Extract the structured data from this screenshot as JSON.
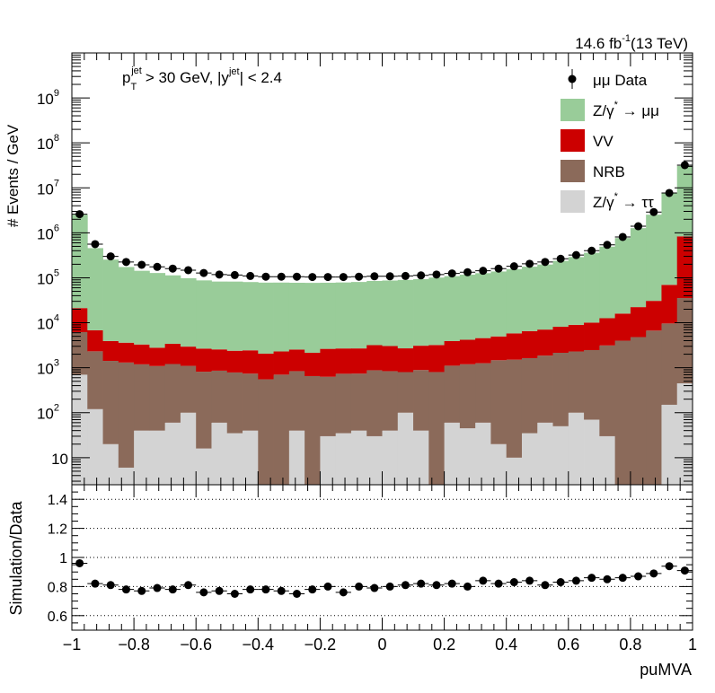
{
  "header": {
    "lumi_text": "14.6 fb",
    "lumi_sup": "-1",
    "energy_text": "(13 TeV)"
  },
  "cut_label": {
    "p": "p",
    "sub_T": "T",
    "sup_jet": "jet",
    "part1": "> 30 GeV,  |y",
    "sup_jet2": "jet",
    "part2": "| < 2.4"
  },
  "chart_data": [
    {
      "type": "bar",
      "stacked": true,
      "y_scale": "log",
      "ylabel": "# Events / GeV",
      "ylim": [
        2.5,
        10000000000.0
      ],
      "xlim": [
        -1,
        1
      ],
      "bin_edges_start": -1.0,
      "bin_width": 0.05,
      "y_ticks": [
        {
          "label": "10",
          "value": 10
        },
        {
          "label": "10",
          "sup": "2",
          "value": 100
        },
        {
          "label": "10",
          "sup": "3",
          "value": 1000
        },
        {
          "label": "10",
          "sup": "4",
          "value": 10000
        },
        {
          "label": "10",
          "sup": "5",
          "value": 100000
        },
        {
          "label": "10",
          "sup": "6",
          "value": 1000000
        },
        {
          "label": "10",
          "sup": "7",
          "value": 10000000
        },
        {
          "label": "10",
          "sup": "8",
          "value": 100000000
        },
        {
          "label": "10",
          "sup": "9",
          "value": 1000000000
        }
      ],
      "legend_position": "top-right",
      "legend": [
        {
          "name": "μμ Data",
          "type": "marker"
        },
        {
          "name": "Z/γ",
          "sup": "*",
          "tail": " → μμ",
          "color": "#99cc99"
        },
        {
          "name": "VV",
          "color": "#cc0000"
        },
        {
          "name": "NRB",
          "color": "#8b6a5a"
        },
        {
          "name": "Z/γ",
          "sup": "*",
          "tail": " → ττ",
          "color": "#d3d3d3"
        }
      ],
      "series": [
        {
          "name": "Z/γ* → ττ",
          "color": "#d3d3d3",
          "values": [
            700,
            120,
            20,
            6,
            40,
            40,
            60,
            100,
            16,
            60,
            35,
            40,
            2,
            2,
            40,
            2,
            30,
            35,
            40,
            30,
            40,
            100,
            40,
            2,
            60,
            45,
            60,
            20,
            10,
            35,
            60,
            50,
            100,
            70,
            30,
            2,
            2,
            2,
            150,
            450
          ]
        },
        {
          "name": "NRB",
          "color": "#8b6a5a",
          "values": [
            5500,
            2200,
            1400,
            1300,
            1150,
            1050,
            1150,
            1000,
            800,
            800,
            750,
            700,
            550,
            700,
            800,
            650,
            600,
            700,
            700,
            850,
            800,
            700,
            850,
            800,
            1050,
            1150,
            1200,
            1450,
            1500,
            1600,
            1800,
            2100,
            2200,
            2400,
            3100,
            4000,
            4800,
            6700,
            9500,
            35000
          ]
        },
        {
          "name": "VV",
          "color": "#cc0000",
          "values": [
            15000,
            4500,
            2500,
            2300,
            2100,
            1700,
            2200,
            1850,
            1850,
            1700,
            1600,
            1700,
            1500,
            1600,
            1700,
            1500,
            2000,
            1950,
            1950,
            2300,
            2200,
            1900,
            2200,
            2400,
            2800,
            3000,
            3300,
            3500,
            4300,
            4900,
            5200,
            6000,
            6700,
            7600,
            9500,
            12000,
            17500,
            24000,
            60000,
            800000
          ]
        },
        {
          "name": "Z/γ* → μμ",
          "color": "#99cc99",
          "values": [
            2500000,
            450000,
            250000,
            170000,
            140000,
            125000,
            110000,
            95000,
            85000,
            80000,
            80000,
            78000,
            76000,
            76000,
            75000,
            75000,
            75000,
            76000,
            78000,
            82000,
            84000,
            87000,
            90000,
            98000,
            105000,
            113000,
            122000,
            133000,
            150000,
            170000,
            190000,
            230000,
            280000,
            350000,
            480000,
            750000,
            1250000,
            2500000,
            7600000,
            30000000
          ]
        }
      ],
      "data": {
        "name": "μμ Data",
        "values": [
          2600000,
          560000,
          300000,
          225000,
          195000,
          175000,
          160000,
          148000,
          128000,
          118000,
          115000,
          110000,
          106000,
          106000,
          106000,
          104000,
          104000,
          104000,
          106000,
          108000,
          108000,
          110000,
          113000,
          118000,
          125000,
          133000,
          143000,
          160000,
          180000,
          205000,
          225000,
          265000,
          320000,
          400000,
          540000,
          810000,
          1400000,
          2900000,
          7700000,
          32000000
        ]
      }
    },
    {
      "type": "scatter",
      "xlabel": "puMVA",
      "ylabel": "Simulation/Data",
      "ylim": [
        0.5,
        1.5
      ],
      "xlim": [
        -1,
        1
      ],
      "grid": "horizontal-dotted",
      "y_ticks": [
        {
          "label": "0.6",
          "value": 0.6
        },
        {
          "label": "0.8",
          "value": 0.8
        },
        {
          "label": "1",
          "value": 1.0
        },
        {
          "label": "1.2",
          "value": 1.2
        },
        {
          "label": "1.4",
          "value": 1.4
        }
      ],
      "x_ticks": [
        {
          "label": "−1",
          "value": -1
        },
        {
          "label": "−0.8",
          "value": -0.8
        },
        {
          "label": "−0.6",
          "value": -0.6
        },
        {
          "label": "−0.4",
          "value": -0.4
        },
        {
          "label": "−0.2",
          "value": -0.2
        },
        {
          "label": "0",
          "value": 0
        },
        {
          "label": "0.2",
          "value": 0.2
        },
        {
          "label": "0.4",
          "value": 0.4
        },
        {
          "label": "0.6",
          "value": 0.6
        },
        {
          "label": "0.8",
          "value": 0.8
        },
        {
          "label": "1",
          "value": 1
        }
      ],
      "values": [
        0.96,
        0.82,
        0.81,
        0.78,
        0.77,
        0.79,
        0.78,
        0.81,
        0.76,
        0.77,
        0.75,
        0.78,
        0.78,
        0.77,
        0.75,
        0.78,
        0.8,
        0.76,
        0.8,
        0.79,
        0.8,
        0.81,
        0.82,
        0.81,
        0.82,
        0.8,
        0.84,
        0.82,
        0.83,
        0.84,
        0.81,
        0.83,
        0.84,
        0.86,
        0.85,
        0.86,
        0.87,
        0.89,
        0.94,
        0.91
      ]
    }
  ]
}
